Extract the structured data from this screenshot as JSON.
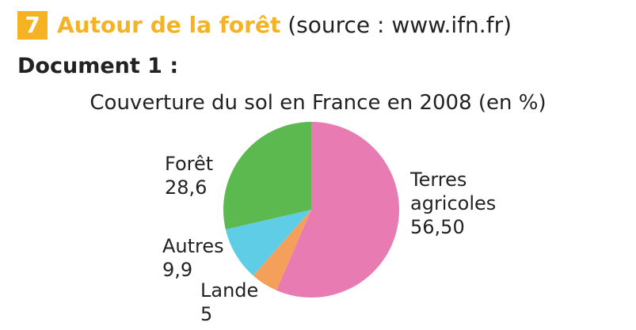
{
  "header": {
    "number": "7",
    "title": "Autour de la forêt",
    "source": "(source : www.ifn.fr)"
  },
  "document_label": "Document 1 :",
  "chart_data": {
    "type": "pie",
    "title": "Couverture du sol en France en 2008 (en %)",
    "categories": [
      "Terres agricoles",
      "Lande",
      "Autres",
      "Forêt"
    ],
    "values": [
      56.5,
      5,
      9.9,
      28.6
    ],
    "value_labels": [
      "56,50",
      "5",
      "9,9",
      "28,6"
    ],
    "colors": [
      "#e87bb2",
      "#f5a05a",
      "#5fcde6",
      "#5cb94f"
    ]
  }
}
